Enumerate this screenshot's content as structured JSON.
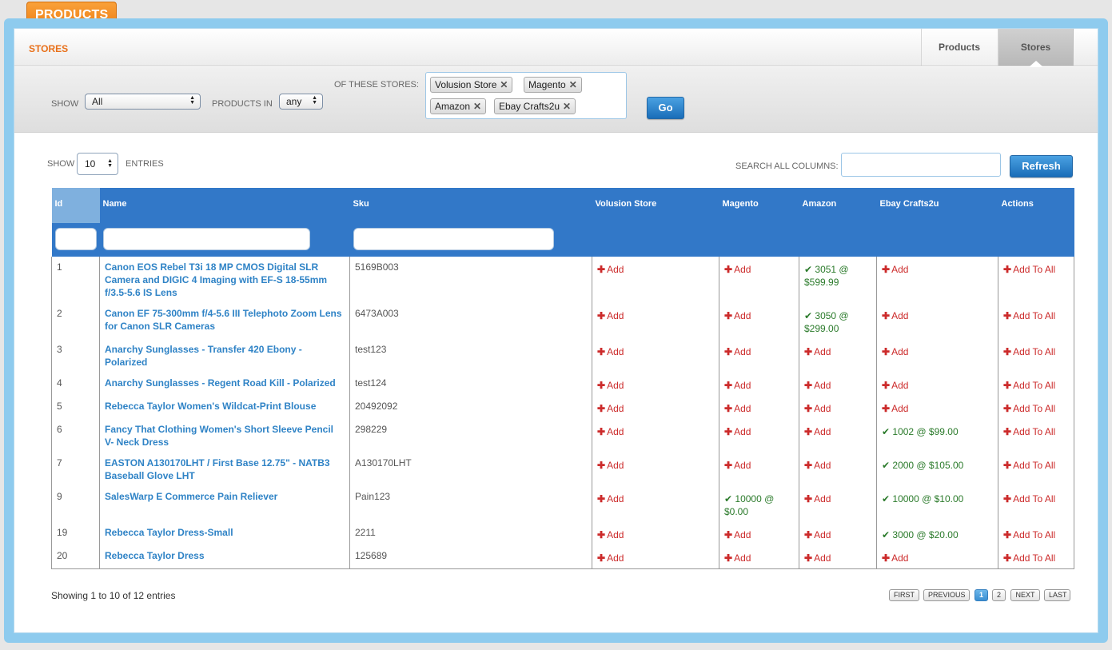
{
  "app": {
    "section_tab": "PRODUCTS"
  },
  "header": {
    "title": "STORES",
    "tabs": [
      {
        "label": "Products"
      },
      {
        "label": "Stores"
      }
    ]
  },
  "filter": {
    "show_label": "SHOW",
    "show_value": "All",
    "products_in_label": "PRODUCTS IN",
    "products_in_value": "any",
    "stores_label": "OF THESE STORES:",
    "stores": [
      "Volusion Store",
      "Magento",
      "Amazon",
      "Ebay Crafts2u"
    ],
    "go_label": "Go"
  },
  "table_controls": {
    "show_label": "SHOW",
    "entries_value": "10",
    "entries_label": "ENTRIES",
    "search_label": "SEARCH ALL COLUMNS:",
    "search_value": "",
    "refresh_label": "Refresh"
  },
  "columns": [
    "Id",
    "Name",
    "Sku",
    "Volusion Store",
    "Magento",
    "Amazon",
    "Ebay Crafts2u",
    "Actions"
  ],
  "rows": [
    {
      "id": "1",
      "name": "Canon EOS Rebel T3i 18 MP CMOS Digital SLR Camera and DIGIC 4 Imaging with EF-S 18-55mm f/3.5-5.6 IS Lens",
      "sku": "5169B003",
      "volusion": "Add",
      "magento": "Add",
      "amazon": "✔ 3051 @ $599.99",
      "ebay": "Add",
      "action": "Add To All"
    },
    {
      "id": "2",
      "name": "Canon EF 75-300mm f/4-5.6 III Telephoto Zoom Lens for Canon SLR Cameras",
      "sku": "6473A003",
      "volusion": "Add",
      "magento": "Add",
      "amazon": "✔ 3050 @ $299.00",
      "ebay": "Add",
      "action": "Add To All"
    },
    {
      "id": "3",
      "name": "Anarchy Sunglasses - Transfer 420 Ebony - Polarized",
      "sku": "test123",
      "volusion": "Add",
      "magento": "Add",
      "amazon": "Add",
      "ebay": "Add",
      "action": "Add To All"
    },
    {
      "id": "4",
      "name": "Anarchy Sunglasses - Regent Road Kill - Polarized",
      "sku": "test124",
      "volusion": "Add",
      "magento": "Add",
      "amazon": "Add",
      "ebay": "Add",
      "action": "Add To All"
    },
    {
      "id": "5",
      "name": "Rebecca Taylor Women's Wildcat-Print Blouse",
      "sku": "20492092",
      "volusion": "Add",
      "magento": "Add",
      "amazon": "Add",
      "ebay": "Add",
      "action": "Add To All"
    },
    {
      "id": "6",
      "name": "Fancy That Clothing Women's Short Sleeve Pencil V- Neck Dress",
      "sku": "298229",
      "volusion": "Add",
      "magento": "Add",
      "amazon": "Add",
      "ebay": "✔ 1002 @ $99.00",
      "action": "Add To All"
    },
    {
      "id": "7",
      "name": "EASTON A130170LHT / First Base 12.75\" - NATB3 Baseball Glove LHT",
      "sku": "A130170LHT",
      "volusion": "Add",
      "magento": "Add",
      "amazon": "Add",
      "ebay": "✔ 2000 @ $105.00",
      "action": "Add To All"
    },
    {
      "id": "9",
      "name": "SalesWarp E Commerce Pain Reliever",
      "sku": "Pain123",
      "volusion": "Add",
      "magento": "✔ 10000 @ $0.00",
      "amazon": "Add",
      "ebay": "✔ 10000 @ $10.00",
      "action": "Add To All"
    },
    {
      "id": "19",
      "name": "Rebecca Taylor Dress-Small",
      "sku": "2211",
      "volusion": "Add",
      "magento": "Add",
      "amazon": "Add",
      "ebay": "✔ 3000 @ $20.00",
      "action": "Add To All"
    },
    {
      "id": "20",
      "name": "Rebecca Taylor Dress",
      "sku": "125689",
      "volusion": "Add",
      "magento": "Add",
      "amazon": "Add",
      "ebay": "Add",
      "action": "Add To All"
    }
  ],
  "footer": {
    "info": "Showing 1 to 10 of 12 entries",
    "pager": [
      "FIRST",
      "PREVIOUS",
      "1",
      "2",
      "NEXT",
      "LAST"
    ],
    "active_page": "1"
  },
  "colors": {
    "accent_orange": "#ee7d12",
    "header_blue": "#3278c8",
    "link_blue": "#2f83c6",
    "add_red": "#cc2b2b",
    "listed_green": "#2a7a2a"
  }
}
